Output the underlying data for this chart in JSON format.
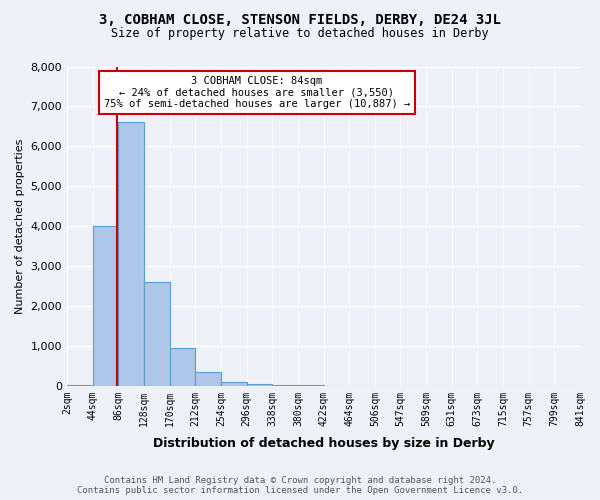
{
  "title": "3, COBHAM CLOSE, STENSON FIELDS, DERBY, DE24 3JL",
  "subtitle": "Size of property relative to detached houses in Derby",
  "xlabel": "Distribution of detached houses by size in Derby",
  "ylabel": "Number of detached properties",
  "footer_line1": "Contains HM Land Registry data © Crown copyright and database right 2024.",
  "footer_line2": "Contains public sector information licensed under the Open Government Licence v3.0.",
  "annotation_line1": "3 COBHAM CLOSE: 84sqm",
  "annotation_line2": "← 24% of detached houses are smaller (3,550)",
  "annotation_line3": "75% of semi-detached houses are larger (10,887) →",
  "bin_labels": [
    "2sqm",
    "44sqm",
    "86sqm",
    "128sqm",
    "170sqm",
    "212sqm",
    "254sqm",
    "296sqm",
    "338sqm",
    "380sqm",
    "422sqm",
    "464sqm",
    "506sqm",
    "547sqm",
    "589sqm",
    "631sqm",
    "673sqm",
    "715sqm",
    "757sqm",
    "799sqm",
    "841sqm"
  ],
  "bar_values": [
    25,
    4000,
    6600,
    2600,
    950,
    350,
    100,
    50,
    25,
    10,
    5,
    2,
    1,
    0,
    0,
    0,
    0,
    0,
    0,
    0
  ],
  "bar_color": "#aec6e8",
  "bar_edge_color": "#5a9fd4",
  "property_line_x": 1.95,
  "property_line_color": "#cc0000",
  "ylim": [
    0,
    8000
  ],
  "yticks": [
    0,
    1000,
    2000,
    3000,
    4000,
    5000,
    6000,
    7000,
    8000
  ],
  "annotation_box_color": "#ffffff",
  "annotation_box_edge": "#cc0000",
  "bg_color": "#eef2f8"
}
